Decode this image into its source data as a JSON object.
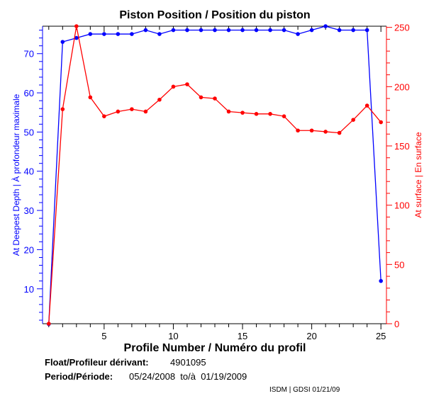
{
  "chart_data": {
    "type": "line",
    "title": "Piston Position / Position du piston",
    "xlabel": "Profile Number / Numéro du profil",
    "ylabel_left": "At Deepest Depth | À profondeur maximale",
    "ylabel_right": "At surface | En surface",
    "xlim": [
      0.55,
      25.4
    ],
    "ylim_left": [
      1.1,
      77
    ],
    "ylim_right": [
      0,
      251
    ],
    "x_ticks": [
      5,
      10,
      15,
      20,
      25
    ],
    "y_left_ticks": [
      10,
      20,
      30,
      40,
      50,
      60,
      70
    ],
    "y_right_ticks": [
      0,
      50,
      100,
      150,
      200,
      250
    ],
    "x": [
      1,
      2,
      3,
      4,
      5,
      6,
      7,
      8,
      9,
      10,
      11,
      12,
      13,
      14,
      15,
      16,
      17,
      18,
      19,
      20,
      21,
      22,
      23,
      24,
      25
    ],
    "series": [
      {
        "name": "At Deepest Depth",
        "axis": "left",
        "color": "#0000ff",
        "values": [
          1,
          73,
          74,
          75,
          75,
          75,
          75,
          76,
          75,
          76,
          76,
          76,
          76,
          76,
          76,
          76,
          76,
          76,
          75,
          76,
          77,
          76,
          76,
          76,
          12
        ]
      },
      {
        "name": "At surface",
        "axis": "right",
        "color": "#ff0000",
        "values": [
          0,
          181,
          251,
          191,
          175,
          179,
          181,
          179,
          189,
          200,
          202,
          191,
          190,
          179,
          178,
          177,
          177,
          175,
          163,
          163,
          162,
          161,
          172,
          184,
          170
        ]
      }
    ]
  },
  "info": {
    "float_label": "Float/Profileur dérivant:",
    "float_value": "4901095",
    "period_label": "Period/Période:",
    "period_value": "05/24/2008  to/à  01/19/2009",
    "credit": "ISDM | GDSI 01/21/09"
  }
}
